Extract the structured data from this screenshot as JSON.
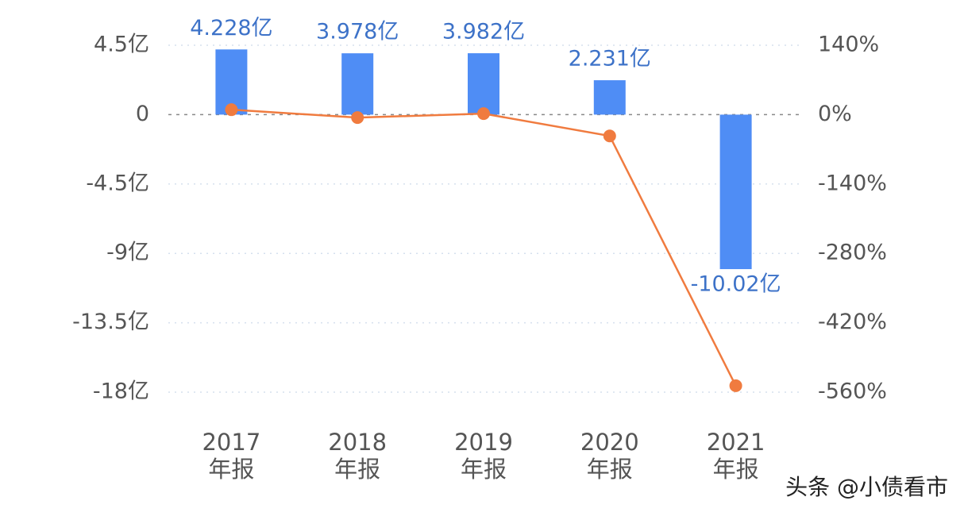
{
  "chart_data": {
    "type": "bar-line",
    "categories": [
      "2017年报",
      "2018年报",
      "2019年报",
      "2020年报",
      "2021年报"
    ],
    "series": [
      {
        "type": "bar",
        "color": "#4f8df5",
        "values": [
          4.228,
          3.978,
          3.982,
          2.231,
          -10.02
        ],
        "value_labels": [
          "4.228亿",
          "3.978亿",
          "3.982亿",
          "2.231亿",
          "-10.02亿"
        ]
      },
      {
        "type": "line",
        "axis": "y2",
        "color": "#f07b3f",
        "values": [
          10,
          -6,
          2,
          -43,
          -547
        ]
      }
    ],
    "ylim": [
      -18,
      4.5
    ],
    "yticks": [
      {
        "value": 4.5,
        "label": "4.5亿"
      },
      0,
      {
        "value": -4.5,
        "label": "-4.5亿"
      },
      {
        "value": -9,
        "label": "-9亿"
      },
      {
        "value": -13.5,
        "label": "-13.5亿"
      },
      {
        "value": -18,
        "label": "-18亿"
      }
    ],
    "y2lim": [
      -560,
      140
    ],
    "y2ticks": [
      {
        "value": 140,
        "label": "140%"
      },
      {
        "value": 0,
        "label": "0%"
      },
      {
        "value": -140,
        "label": "-140%"
      },
      {
        "value": -280,
        "label": "-280%"
      },
      {
        "value": -420,
        "label": "-420%"
      },
      {
        "value": -560,
        "label": "-560%"
      }
    ],
    "grid": true,
    "watermark": "头条 @小债看市"
  }
}
